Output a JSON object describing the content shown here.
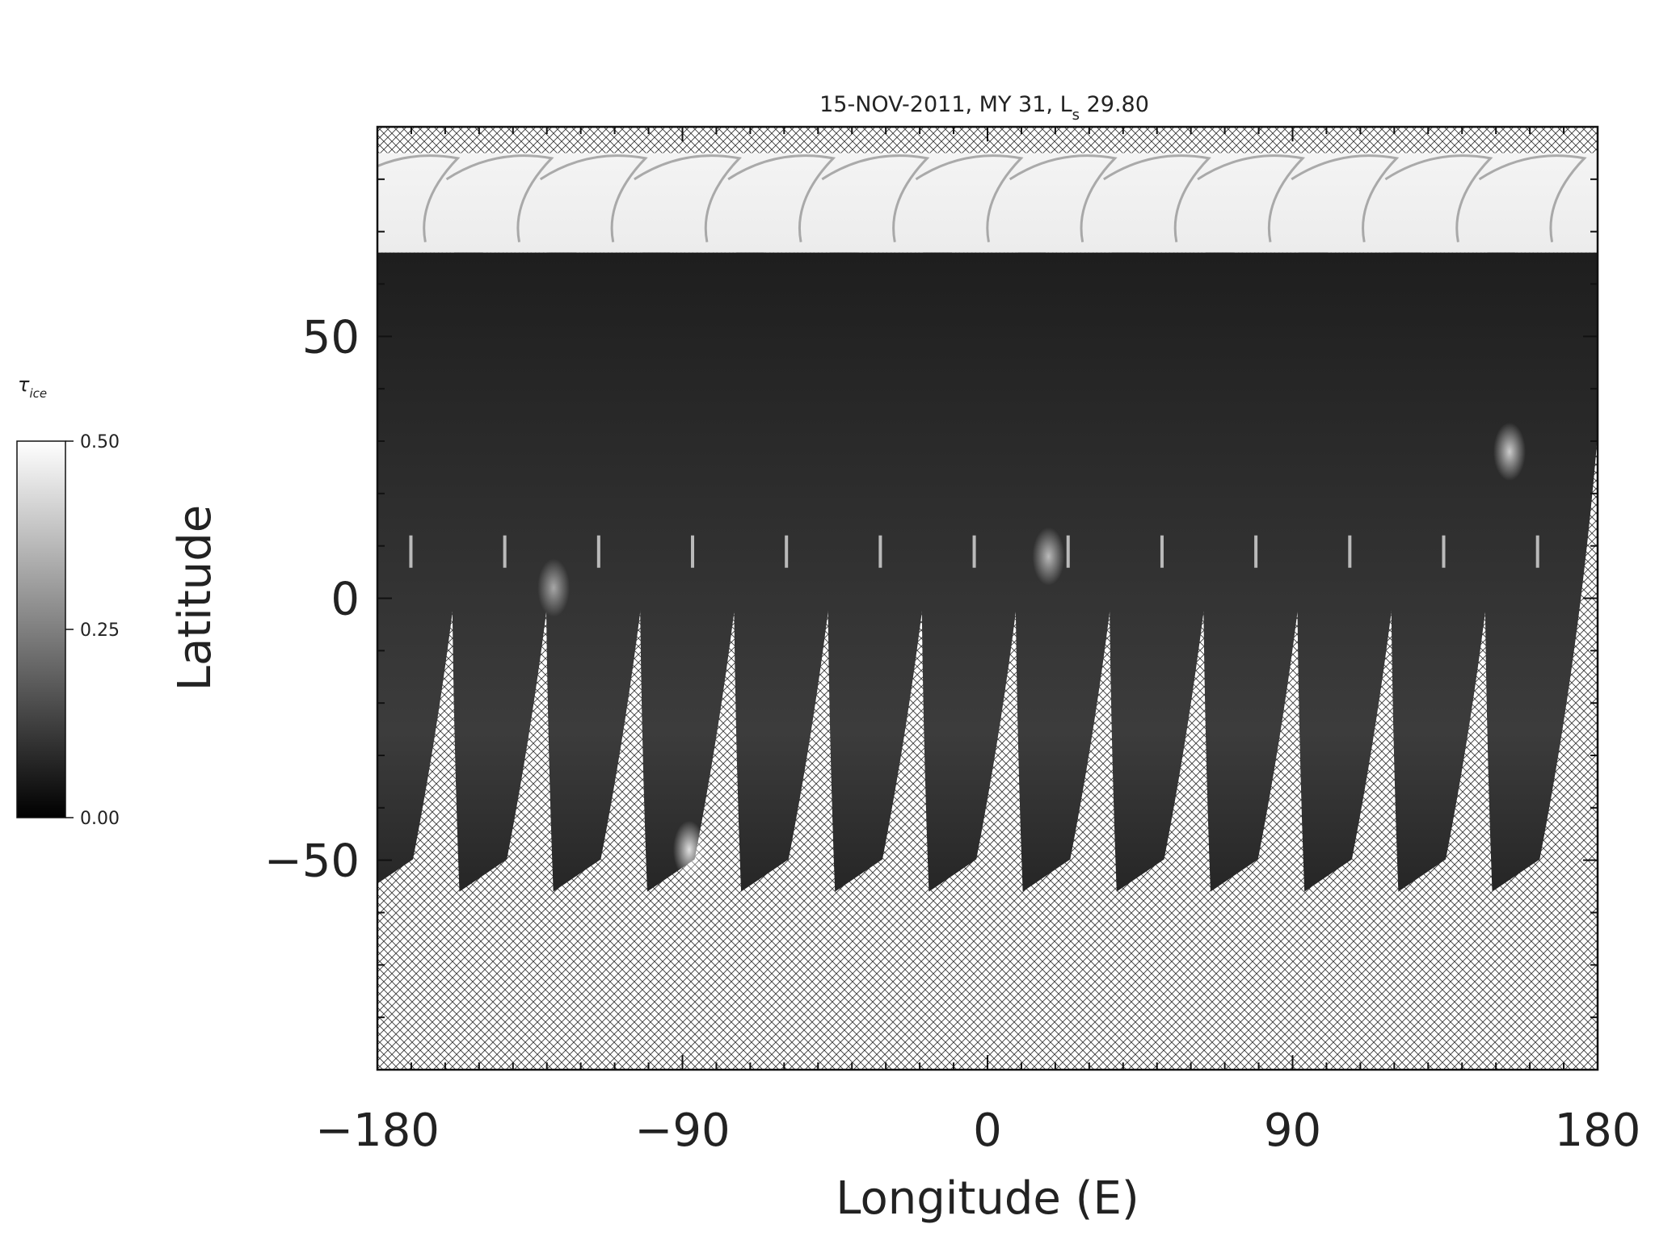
{
  "chart_data": {
    "type": "heatmap",
    "title": "15-NOV-2011, MY 31,  L",
    "title_subscript": "s",
    "title_suffix": " 29.80",
    "xlabel": "Longitude (E)",
    "ylabel": "Latitude",
    "xlim": [
      -180,
      180
    ],
    "ylim": [
      -90,
      90
    ],
    "x_ticks": [
      -180,
      -90,
      0,
      90,
      180
    ],
    "x_tick_labels": [
      "−180",
      "−90",
      "0",
      "90",
      "180"
    ],
    "y_ticks": [
      -50,
      0,
      50
    ],
    "y_tick_labels": [
      "−50",
      "0",
      "50"
    ],
    "x_minor_step": 10,
    "y_minor_step": 10,
    "no_data_pattern": "crosshatch",
    "colorbar": {
      "label": "τ",
      "label_subscript": "ice",
      "min": 0.0,
      "max": 0.5,
      "tick_values": [
        0.0,
        0.25,
        0.5
      ],
      "tick_labels": [
        "0.00",
        "0.25",
        "0.50"
      ],
      "color_low": "#000000",
      "color_high": "#ffffff"
    },
    "polar_hood": {
      "lat_bottom": 66,
      "lat_top": 85,
      "tau": 0.5
    },
    "swaths": {
      "count": 13,
      "spacing_lon": 27.7,
      "first_top_lon": -167,
      "first_bottom_lon": -176.5,
      "top_lat": 66,
      "bottom_lat": -56,
      "width_top_lon": 36,
      "width_bottom_lon": 14,
      "tau_mean": 0.06
    },
    "features": [
      {
        "lon": 18,
        "lat": 8,
        "tau": 0.35
      },
      {
        "lon": 154,
        "lat": 28,
        "tau": 0.4
      },
      {
        "lon": -88,
        "lat": -48,
        "tau": 0.45
      },
      {
        "lon": -128,
        "lat": 2,
        "tau": 0.3
      }
    ]
  }
}
